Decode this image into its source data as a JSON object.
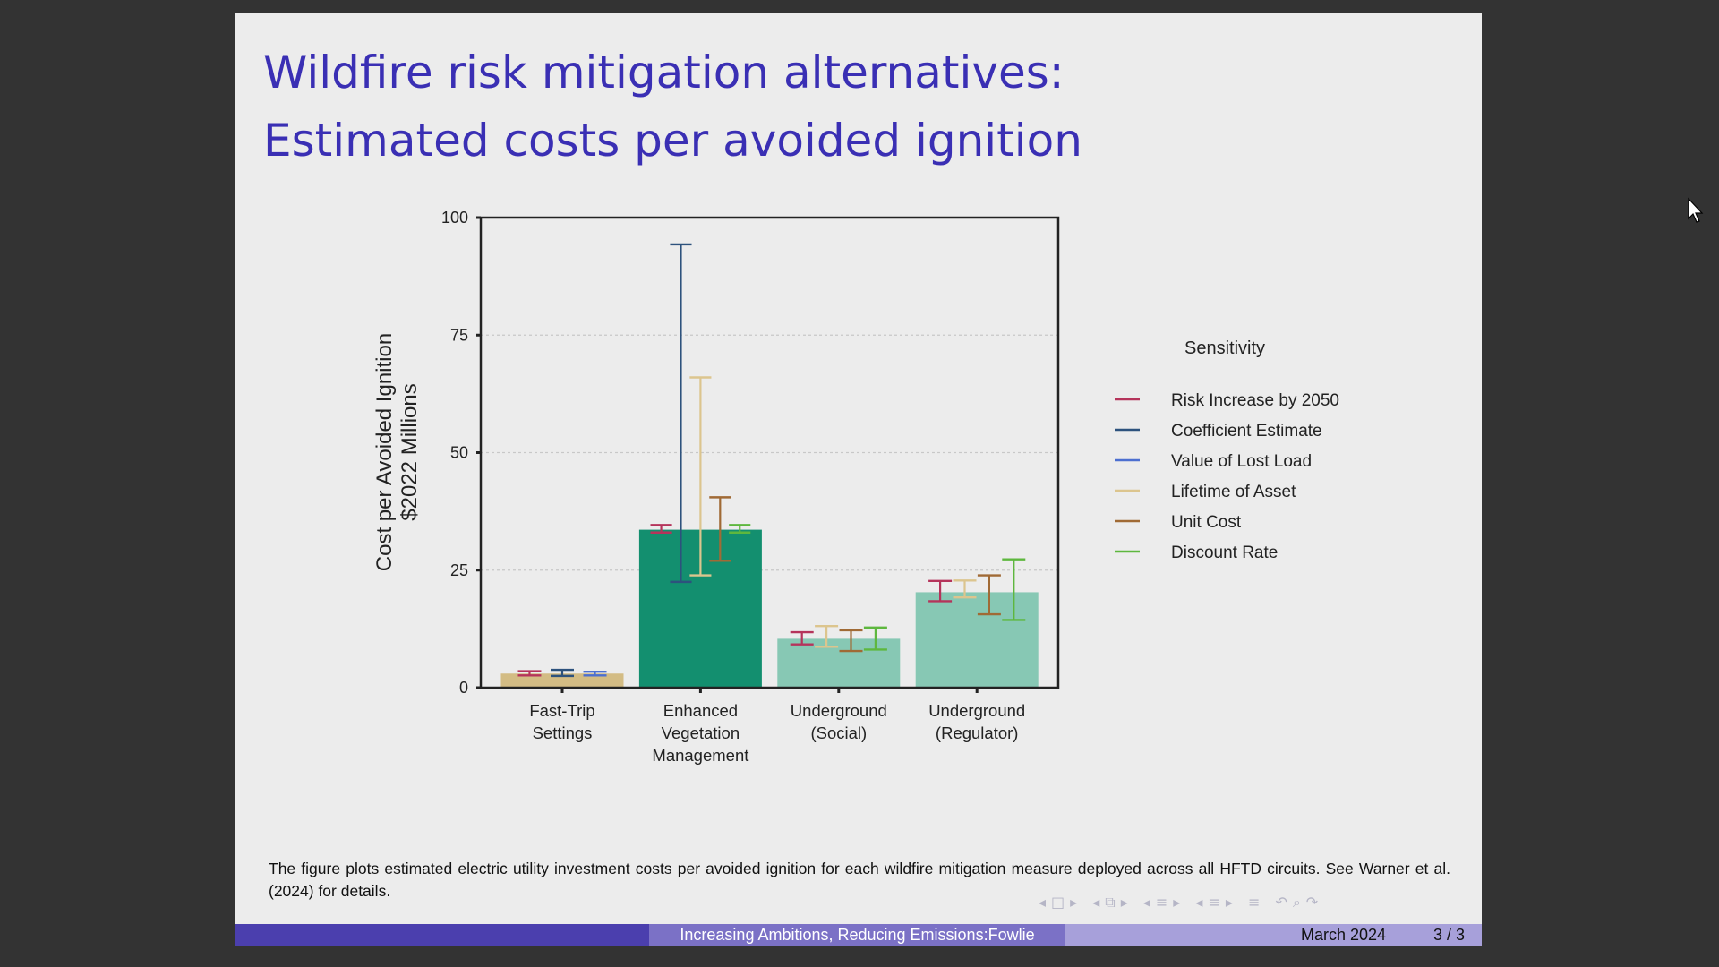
{
  "slide": {
    "title_line1": "Wildfire risk mitigation alternatives:",
    "title_line2": "Estimated costs per avoided ignition",
    "caption": "The figure plots estimated electric utility investment costs per avoided ignition for each wildfire mitigation measure deployed across all HFTD circuits. See Warner et al. (2024) for details.",
    "footer": {
      "title": "Increasing Ambitions, Reducing Emissions:Fowlie",
      "date": "March 2024",
      "page": "3 / 3"
    },
    "colors": {
      "title": "#3a2fb4",
      "footer_dark": "#4b3fae",
      "footer_mid": "#7b71c6",
      "footer_light": "#a7a0da",
      "background": "#ececec"
    }
  },
  "chart_data": {
    "type": "bar",
    "ylabel_line1": "Cost per Avoided Ignition",
    "ylabel_line2": "$2022 Millions",
    "ylim": [
      0,
      100
    ],
    "yticks": [
      0,
      25,
      50,
      75,
      100
    ],
    "grid": "horizontal dotted",
    "categories": [
      [
        "Fast-Trip",
        "Settings"
      ],
      [
        "Enhanced",
        "Vegetation",
        "Management"
      ],
      [
        "Underground",
        "(Social)"
      ],
      [
        "Underground",
        "(Regulator)"
      ]
    ],
    "values": [
      3.0,
      33.6,
      10.4,
      20.3
    ],
    "bar_colors": [
      "#d3bc84",
      "#138f6f",
      "#87c8b4",
      "#87c8b4"
    ],
    "legend_title": "Sensitivity",
    "legend_placement": "right",
    "error_series": [
      {
        "name": "Risk Increase by 2050",
        "color": "#b5345b",
        "ranges": [
          [
            2.6,
            3.5
          ],
          [
            33.0,
            34.6
          ],
          [
            9.2,
            11.8
          ],
          [
            18.4,
            22.7
          ]
        ]
      },
      {
        "name": "Coefficient Estimate",
        "color": "#2d527d",
        "ranges": [
          [
            2.5,
            3.8
          ],
          [
            22.5,
            94.3
          ],
          null,
          null
        ]
      },
      {
        "name": "Value of Lost Load",
        "color": "#4c6fd0",
        "ranges": [
          [
            2.6,
            3.4
          ],
          null,
          null,
          null
        ]
      },
      {
        "name": "Lifetime of Asset",
        "color": "#dcc58e",
        "ranges": [
          null,
          [
            23.9,
            66.0
          ],
          [
            8.7,
            13.1
          ],
          [
            19.2,
            22.8
          ]
        ]
      },
      {
        "name": "Unit Cost",
        "color": "#a06a35",
        "ranges": [
          null,
          [
            27.0,
            40.5
          ],
          [
            7.8,
            12.2
          ],
          [
            15.6,
            23.9
          ]
        ]
      },
      {
        "name": "Discount Rate",
        "color": "#5eb73e",
        "ranges": [
          null,
          [
            33.0,
            34.6
          ],
          [
            8.1,
            12.8
          ],
          [
            14.4,
            27.3
          ]
        ]
      }
    ]
  }
}
